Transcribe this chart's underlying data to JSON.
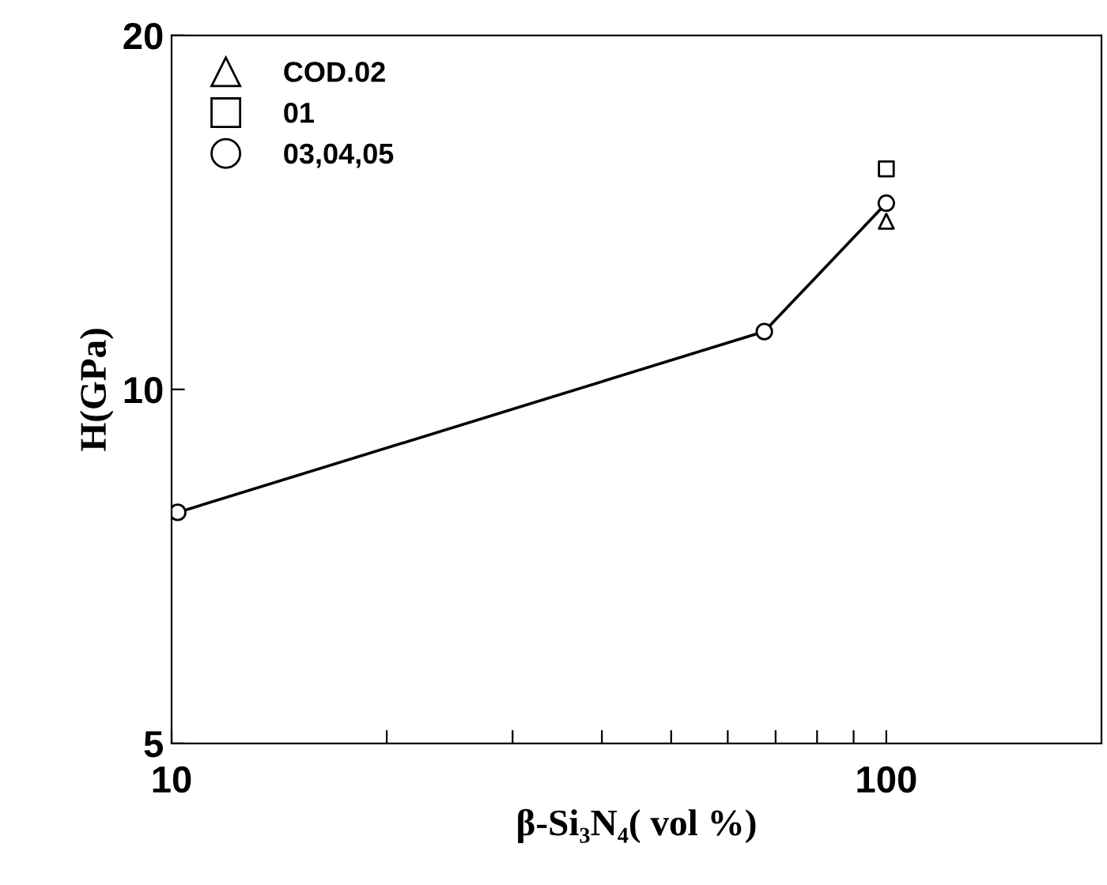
{
  "chart_data": {
    "type": "line",
    "xlabel": "β-Si₃N₄( vol %)",
    "ylabel": "H(GPa)",
    "log": "xy",
    "xlim": [
      10,
      200
    ],
    "ylim": [
      5,
      20
    ],
    "xticks": [
      10,
      {
        "value": 20,
        "label": null
      },
      {
        "value": 30,
        "label": null
      },
      {
        "value": 40,
        "label": null
      },
      {
        "value": 50,
        "label": null
      },
      {
        "value": 60,
        "label": null
      },
      {
        "value": 70,
        "label": null
      },
      {
        "value": 80,
        "label": null
      },
      {
        "value": 90,
        "label": null
      },
      100
    ],
    "yticks": [
      5,
      10,
      20
    ],
    "grid": false,
    "legend": "top left",
    "series": [
      {
        "name": "COD.02",
        "type": "scatter",
        "marker": "triangle",
        "color": "#000000",
        "x": [
          100
        ],
        "values": [
          13.9
        ]
      },
      {
        "name": "01",
        "type": "scatter",
        "marker": "square",
        "color": "#000000",
        "x": [
          100
        ],
        "values": [
          15.4
        ]
      },
      {
        "name": "03,04,05",
        "marker": "circle",
        "color": "#000000",
        "x": [
          10.2,
          67.5,
          100
        ],
        "values": [
          7.86,
          11.2,
          14.4
        ]
      }
    ]
  }
}
